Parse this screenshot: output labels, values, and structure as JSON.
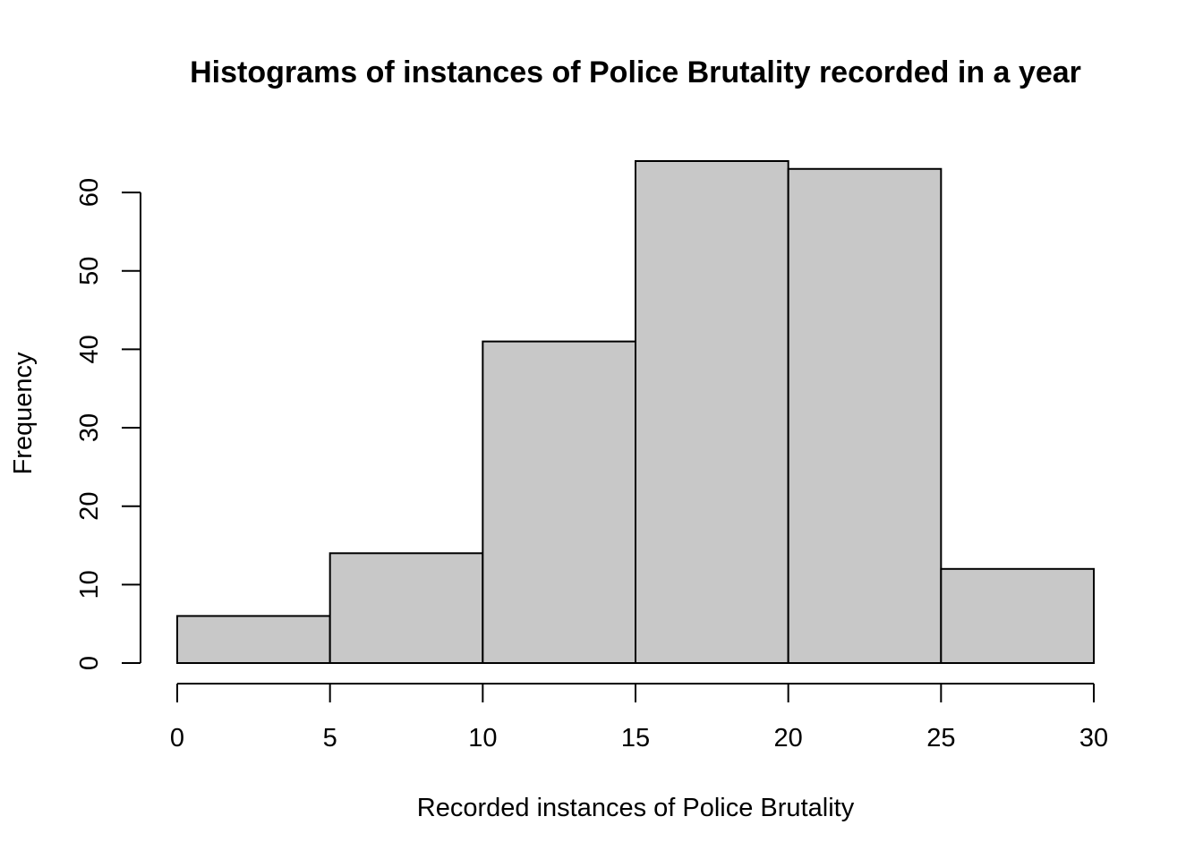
{
  "chart_data": {
    "type": "bar",
    "title": "Histograms of instances of Police Brutality recorded in a year",
    "xlabel": "Recorded instances of Police Brutality",
    "ylabel": "Frequency",
    "bins": [
      {
        "from": 0,
        "to": 5,
        "value": 6
      },
      {
        "from": 5,
        "to": 10,
        "value": 14
      },
      {
        "from": 10,
        "to": 15,
        "value": 41
      },
      {
        "from": 15,
        "to": 20,
        "value": 64
      },
      {
        "from": 20,
        "to": 25,
        "value": 63
      },
      {
        "from": 25,
        "to": 30,
        "value": 12
      }
    ],
    "xlim": [
      0,
      30
    ],
    "ylim": [
      0,
      64
    ],
    "xticks": [
      "0",
      "5",
      "10",
      "15",
      "20",
      "25",
      "30"
    ],
    "yticks": [
      "0",
      "10",
      "20",
      "30",
      "40",
      "50",
      "60"
    ],
    "grid": false,
    "bar_color": "#c8c8c8",
    "edge_color": "#000000"
  }
}
